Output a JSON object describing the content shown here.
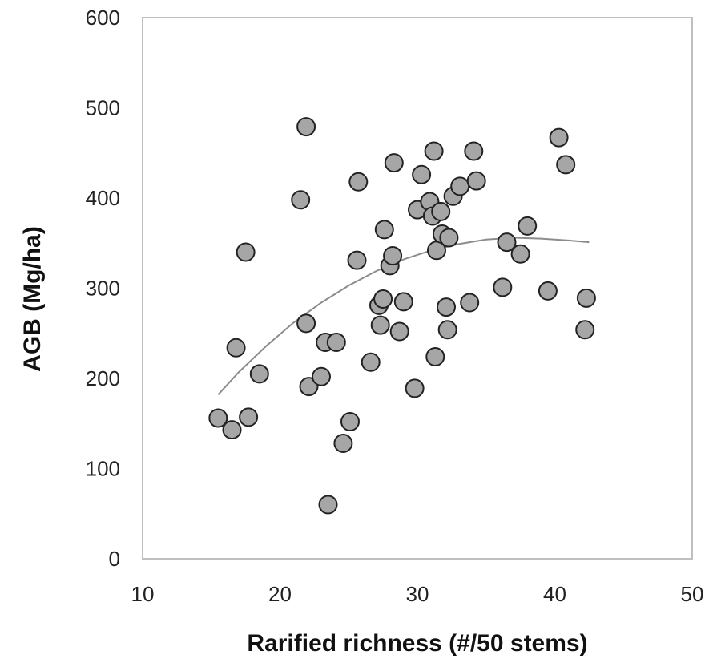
{
  "chart_data": {
    "type": "scatter",
    "title": "",
    "xlabel": "Rarified richness (#/50 stems)",
    "ylabel": "AGB (Mg/ha)",
    "xlim": [
      10,
      50
    ],
    "ylim": [
      0,
      600
    ],
    "xticks": [
      10,
      20,
      30,
      40,
      50
    ],
    "yticks": [
      0,
      100,
      200,
      300,
      400,
      500,
      600
    ],
    "grid": false,
    "legend": "none",
    "colors": {
      "marker_fill": "#a6a6a6",
      "marker_edge": "#222222",
      "trend_line": "#8c8c8c",
      "frame": "#bfbfbf"
    },
    "series": [
      {
        "points": [
          [
            15.5,
            156
          ],
          [
            16.5,
            143
          ],
          [
            16.8,
            234
          ],
          [
            17.5,
            340
          ],
          [
            17.7,
            157
          ],
          [
            18.5,
            205
          ],
          [
            21.5,
            398
          ],
          [
            21.9,
            479
          ],
          [
            21.9,
            261
          ],
          [
            22.1,
            191
          ],
          [
            23.0,
            202
          ],
          [
            23.3,
            240
          ],
          [
            23.5,
            60
          ],
          [
            24.1,
            240
          ],
          [
            24.6,
            128
          ],
          [
            25.1,
            152
          ],
          [
            25.6,
            331
          ],
          [
            25.7,
            418
          ],
          [
            26.6,
            218
          ],
          [
            27.2,
            281
          ],
          [
            27.3,
            259
          ],
          [
            27.5,
            288
          ],
          [
            27.6,
            365
          ],
          [
            28.0,
            325
          ],
          [
            28.2,
            336
          ],
          [
            28.3,
            439
          ],
          [
            28.7,
            252
          ],
          [
            29.0,
            285
          ],
          [
            29.8,
            189
          ],
          [
            30.0,
            387
          ],
          [
            30.3,
            426
          ],
          [
            30.9,
            396
          ],
          [
            31.1,
            380
          ],
          [
            31.2,
            452
          ],
          [
            31.3,
            224
          ],
          [
            31.4,
            342
          ],
          [
            31.7,
            385
          ],
          [
            31.8,
            360
          ],
          [
            32.1,
            279
          ],
          [
            32.2,
            254
          ],
          [
            32.3,
            356
          ],
          [
            32.6,
            402
          ],
          [
            33.1,
            413
          ],
          [
            33.8,
            284
          ],
          [
            34.1,
            452
          ],
          [
            34.3,
            419
          ],
          [
            36.2,
            301
          ],
          [
            36.5,
            351
          ],
          [
            37.5,
            338
          ],
          [
            38.0,
            369
          ],
          [
            39.5,
            297
          ],
          [
            40.3,
            467
          ],
          [
            40.8,
            437
          ],
          [
            42.2,
            254
          ],
          [
            42.3,
            289
          ]
        ]
      }
    ],
    "trendline": {
      "type": "polynomial",
      "points": [
        [
          15.5,
          182
        ],
        [
          17,
          207
        ],
        [
          19,
          236
        ],
        [
          21,
          262
        ],
        [
          23,
          284
        ],
        [
          25,
          303
        ],
        [
          27,
          319
        ],
        [
          29,
          332
        ],
        [
          31,
          342
        ],
        [
          33,
          349
        ],
        [
          35,
          354
        ],
        [
          37,
          356
        ],
        [
          39,
          355
        ],
        [
          41,
          353
        ],
        [
          42.5,
          351
        ]
      ]
    }
  }
}
